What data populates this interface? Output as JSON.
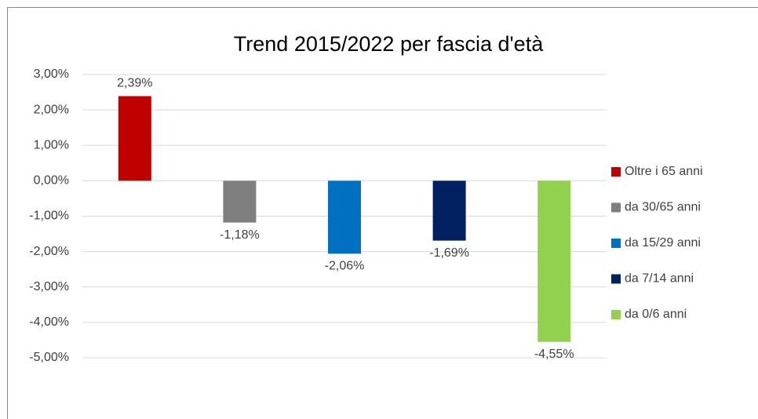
{
  "chart_data": {
    "type": "bar",
    "title": "Trend 2015/2022 per fascia d'età",
    "series": [
      {
        "name": "Oltre i 65 anni",
        "color": "#c00000",
        "values": [
          2.39
        ],
        "value_labels": [
          "2,39%"
        ]
      },
      {
        "name": "da 30/65 anni",
        "color": "#7f7f7f",
        "values": [
          -1.18
        ],
        "value_labels": [
          "-1,18%"
        ]
      },
      {
        "name": "da 15/29 anni",
        "color": "#0070c0",
        "values": [
          -2.06
        ],
        "value_labels": [
          "-2,06%"
        ]
      },
      {
        "name": "da 7/14 anni",
        "color": "#002060",
        "values": [
          -1.69
        ],
        "value_labels": [
          "-1,69%"
        ]
      },
      {
        "name": "da 0/6 anni",
        "color": "#92d050",
        "values": [
          -4.55
        ],
        "value_labels": [
          "-4,55%"
        ]
      }
    ],
    "ylim": [
      -5,
      3
    ],
    "yticks": [
      {
        "value": 3,
        "label": "3,00%"
      },
      {
        "value": 2,
        "label": "2,00%"
      },
      {
        "value": 1,
        "label": "1,00%"
      },
      {
        "value": 0,
        "label": "0,00%"
      },
      {
        "value": -1,
        "label": "-1,00%"
      },
      {
        "value": -2,
        "label": "-2,00%"
      },
      {
        "value": -3,
        "label": "-3,00%"
      },
      {
        "value": -4,
        "label": "-4,00%"
      },
      {
        "value": -5,
        "label": "-5,00%"
      }
    ],
    "grid": true,
    "legend": "right"
  }
}
